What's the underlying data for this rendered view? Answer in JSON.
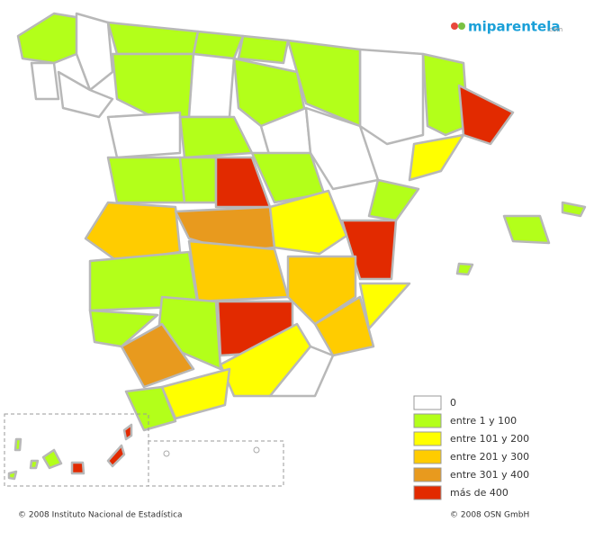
{
  "logo": {
    "name": "miparentela",
    "suffix": ".com"
  },
  "legend": {
    "items": [
      {
        "label": "0",
        "color": "#ffffff"
      },
      {
        "label": "entre 1 y 100",
        "color": "#b3ff1a"
      },
      {
        "label": "entre 101 y 200",
        "color": "#ffff00"
      },
      {
        "label": "entre 201 y 300",
        "color": "#ffcc00"
      },
      {
        "label": "entre 301 y 400",
        "color": "#e89a1e"
      },
      {
        "label": "más de 400",
        "color": "#e22a00"
      }
    ]
  },
  "footer": {
    "left": "© 2008 Instituto Nacional de Estadística",
    "right": "© 2008 OSN GmbH"
  }
}
